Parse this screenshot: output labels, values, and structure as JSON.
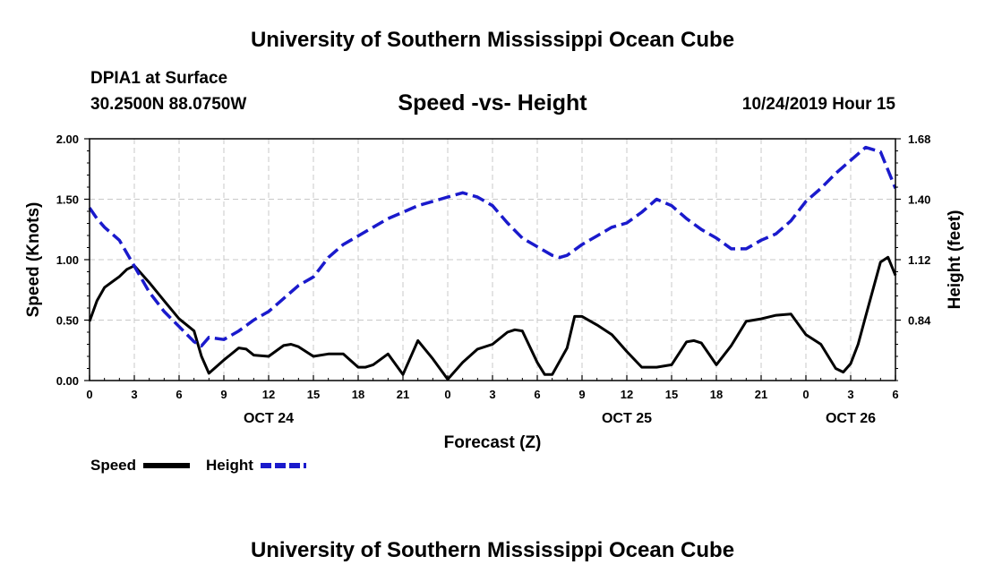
{
  "header": {
    "title": "University of Southern Mississippi Ocean Cube",
    "station": "DPIA1 at Surface",
    "coords": "30.2500N 88.0750W",
    "chart_title": "Speed -vs- Height",
    "datetime": "10/24/2019 Hour 15"
  },
  "footer": {
    "title": "University of Southern Mississippi Ocean Cube"
  },
  "colors": {
    "speed": "#000000",
    "height": "#1a1acc",
    "grid": "#c8c8c8"
  },
  "chart_data": {
    "type": "line",
    "title": "Speed -vs- Height",
    "xlabel": "Forecast (Z)",
    "ylabel": "Speed (Knots)",
    "y2label": "Height (feet)",
    "xlim": [
      0,
      54
    ],
    "ylim": [
      0,
      2.0
    ],
    "y2lim": [
      0.56,
      1.68
    ],
    "grid": true,
    "x_ticks": [
      {
        "x": 0,
        "label": "0"
      },
      {
        "x": 3,
        "label": "3"
      },
      {
        "x": 6,
        "label": "6"
      },
      {
        "x": 9,
        "label": "9"
      },
      {
        "x": 12,
        "label": "12"
      },
      {
        "x": 15,
        "label": "15"
      },
      {
        "x": 18,
        "label": "18"
      },
      {
        "x": 21,
        "label": "21"
      },
      {
        "x": 24,
        "label": "0"
      },
      {
        "x": 27,
        "label": "3"
      },
      {
        "x": 30,
        "label": "6"
      },
      {
        "x": 33,
        "label": "9"
      },
      {
        "x": 36,
        "label": "12"
      },
      {
        "x": 39,
        "label": "15"
      },
      {
        "x": 42,
        "label": "18"
      },
      {
        "x": 45,
        "label": "21"
      },
      {
        "x": 48,
        "label": "0"
      },
      {
        "x": 51,
        "label": "3"
      },
      {
        "x": 54,
        "label": "6"
      }
    ],
    "date_labels": [
      {
        "x": 12,
        "label": "OCT 24"
      },
      {
        "x": 36,
        "label": "OCT 25"
      },
      {
        "x": 51,
        "label": "OCT 26"
      }
    ],
    "y_ticks": [
      "0.00",
      "0.50",
      "1.00",
      "1.50",
      "2.00"
    ],
    "y2_ticks": [
      "0.84",
      "1.12",
      "1.40",
      "1.68"
    ],
    "legend": [
      {
        "name": "Speed",
        "style": "solid"
      },
      {
        "name": "Height",
        "style": "dashed"
      }
    ],
    "series": [
      {
        "name": "Speed",
        "axis": "left",
        "x": [
          0,
          0.5,
          1,
          2,
          2.5,
          3,
          4,
          5,
          6,
          7,
          7.5,
          8,
          9,
          10,
          10.5,
          11,
          12,
          13,
          13.5,
          14,
          15,
          16,
          17,
          18,
          18.5,
          19,
          20,
          21,
          22,
          23,
          24,
          25,
          26,
          27,
          28,
          28.5,
          29,
          30,
          30.5,
          31,
          32,
          32.5,
          33,
          34,
          35,
          36,
          37,
          38,
          39,
          40,
          40.5,
          41,
          42,
          43,
          44,
          45,
          46,
          47,
          48,
          49,
          50,
          50.5,
          51,
          51.5,
          52,
          53,
          53.5,
          54
        ],
        "values": [
          0.49,
          0.66,
          0.77,
          0.86,
          0.92,
          0.95,
          0.81,
          0.66,
          0.51,
          0.41,
          0.2,
          0.06,
          0.17,
          0.27,
          0.26,
          0.21,
          0.2,
          0.29,
          0.3,
          0.28,
          0.2,
          0.22,
          0.22,
          0.11,
          0.11,
          0.13,
          0.22,
          0.05,
          0.33,
          0.18,
          0.01,
          0.15,
          0.26,
          0.3,
          0.4,
          0.42,
          0.41,
          0.15,
          0.05,
          0.05,
          0.27,
          0.53,
          0.53,
          0.46,
          0.38,
          0.24,
          0.11,
          0.11,
          0.13,
          0.32,
          0.33,
          0.31,
          0.13,
          0.29,
          0.49,
          0.51,
          0.54,
          0.55,
          0.38,
          0.3,
          0.1,
          0.07,
          0.14,
          0.3,
          0.53,
          0.98,
          1.02,
          0.87
        ]
      },
      {
        "name": "Height",
        "axis": "right",
        "x": [
          0,
          0.5,
          1,
          2,
          3,
          4,
          5,
          6,
          7,
          7.5,
          8,
          9,
          10,
          11,
          12,
          13,
          14,
          15,
          16,
          17,
          18,
          19,
          20,
          21,
          22,
          23,
          24,
          25,
          26,
          27,
          28,
          29,
          30,
          31,
          31.5,
          32,
          33,
          34,
          35,
          36,
          37,
          38,
          39,
          40,
          41,
          42,
          43,
          44,
          45,
          46,
          47,
          48,
          49,
          50,
          51,
          52,
          53,
          54
        ],
        "values": [
          1.36,
          1.31,
          1.27,
          1.21,
          1.09,
          0.97,
          0.88,
          0.81,
          0.74,
          0.72,
          0.76,
          0.75,
          0.79,
          0.84,
          0.88,
          0.94,
          1.0,
          1.04,
          1.13,
          1.19,
          1.23,
          1.27,
          1.31,
          1.34,
          1.37,
          1.39,
          1.41,
          1.43,
          1.41,
          1.37,
          1.29,
          1.22,
          1.18,
          1.14,
          1.13,
          1.14,
          1.19,
          1.23,
          1.27,
          1.29,
          1.34,
          1.4,
          1.37,
          1.31,
          1.26,
          1.22,
          1.17,
          1.17,
          1.21,
          1.24,
          1.3,
          1.39,
          1.45,
          1.52,
          1.58,
          1.64,
          1.62,
          1.45
        ]
      }
    ]
  }
}
